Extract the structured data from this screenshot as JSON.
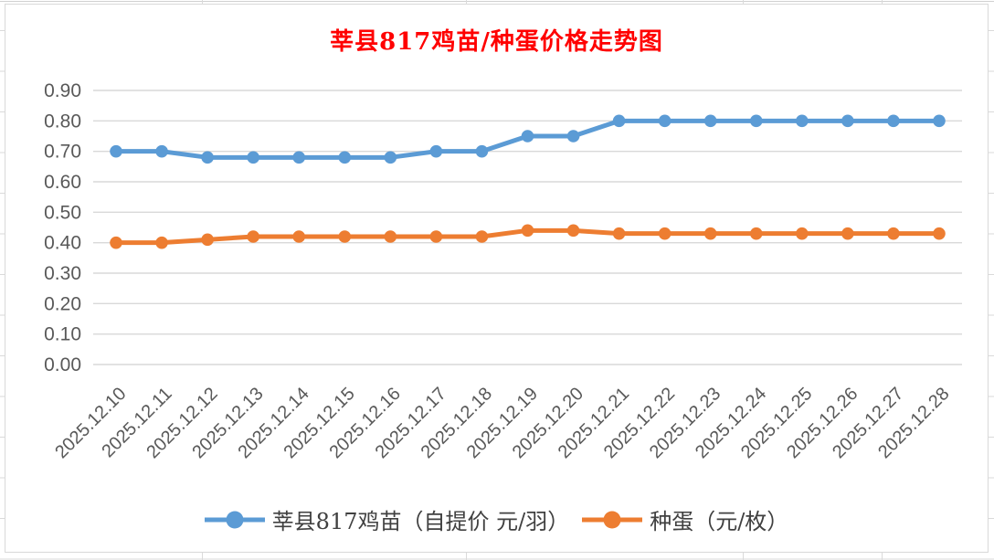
{
  "chart_data": {
    "type": "line",
    "title": "莘县817鸡苗/种蛋价格走势图",
    "xlabel": "",
    "ylabel": "",
    "categories": [
      "2025.12.10",
      "2025.12.11",
      "2025.12.12",
      "2025.12.13",
      "2025.12.14",
      "2025.12.15",
      "2025.12.16",
      "2025.12.17",
      "2025.12.18",
      "2025.12.19",
      "2025.12.20",
      "2025.12.21",
      "2025.12.22",
      "2025.12.23",
      "2025.12.24",
      "2025.12.25",
      "2025.12.26",
      "2025.12.27",
      "2025.12.28"
    ],
    "series": [
      {
        "name": "莘县817鸡苗（自提价 元/羽）",
        "color": "#5B9BD5",
        "values": [
          0.7,
          0.7,
          0.68,
          0.68,
          0.68,
          0.68,
          0.68,
          0.7,
          0.7,
          0.75,
          0.75,
          0.8,
          0.8,
          0.8,
          0.8,
          0.8,
          0.8,
          0.8,
          0.8
        ]
      },
      {
        "name": "种蛋（元/枚）",
        "color": "#ED7D31",
        "values": [
          0.4,
          0.4,
          0.41,
          0.42,
          0.42,
          0.42,
          0.42,
          0.42,
          0.42,
          0.44,
          0.44,
          0.43,
          0.43,
          0.43,
          0.43,
          0.43,
          0.43,
          0.43,
          0.43
        ]
      }
    ],
    "ylim": [
      0.0,
      0.9
    ],
    "ytick_step": 0.1,
    "yticks": [
      "0.90",
      "0.80",
      "0.70",
      "0.60",
      "0.50",
      "0.40",
      "0.30",
      "0.20",
      "0.10",
      "0.00"
    ],
    "grid": "horizontal",
    "legend_position": "bottom"
  },
  "colors": {
    "title": "#FF0000",
    "series_blue": "#5B9BD5",
    "series_orange": "#ED7D31",
    "gridline": "#D9D9D9",
    "tick_label": "#595959",
    "legend_text": "#404040",
    "chart_border": "#D9D9D9"
  }
}
